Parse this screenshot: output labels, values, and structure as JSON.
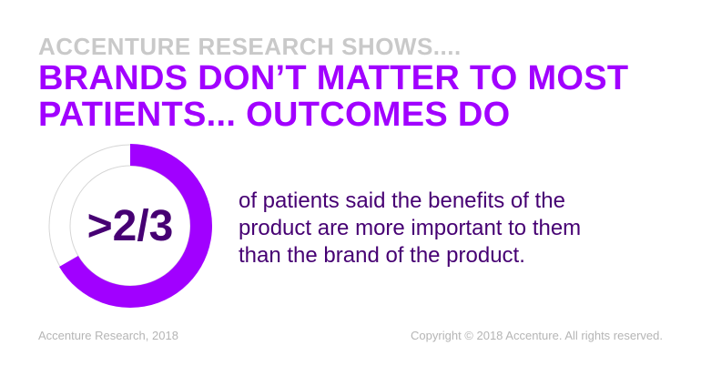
{
  "kicker": "ACCENTURE RESEARCH SHOWS....",
  "headline": [
    "BRANDS DON’T MATTER TO MOST",
    "PATIENTS... OUTCOMES DO"
  ],
  "stat": {
    "label": ">2/3",
    "fraction": 0.6667
  },
  "description": [
    "of patients said the benefits of the",
    "product are more important to them",
    "than the brand of the product."
  ],
  "footer": {
    "source": "Accenture Research, 2018",
    "copyright": "Copyright © 2018 Accenture. All rights reserved."
  },
  "colors": {
    "accent": "#a100ff",
    "dark": "#460073",
    "grey": "#c9c9c9"
  }
}
